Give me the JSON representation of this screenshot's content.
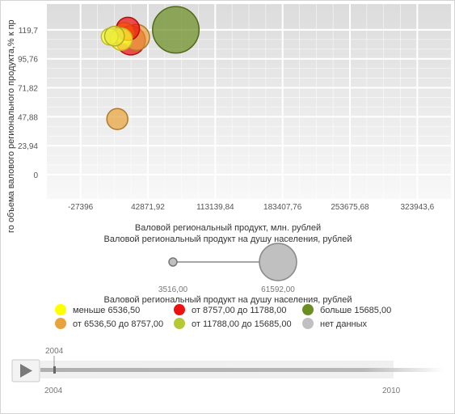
{
  "chart_data": {
    "type": "scatter",
    "variant": "bubble",
    "xlabel": "Валовой региональный продукт, млн. рублей",
    "ylabel": "го объема валового регионального продукта,% к пр",
    "size_label": "Валовой региональный продукт на душу населения, рублей",
    "x_ticks": [
      "-27396",
      "42871,92",
      "113139,84",
      "183407,76",
      "253675,68",
      "323943,6"
    ],
    "x_tick_values": [
      -27396,
      42871.92,
      113139.84,
      183407.76,
      253675.68,
      323943.6
    ],
    "y_ticks": [
      "0",
      "23,94",
      "47,88",
      "71,82",
      "95,76",
      "119,7"
    ],
    "y_tick_values": [
      0,
      23.94,
      47.88,
      71.82,
      95.76,
      119.7
    ],
    "xlim": [
      -62530,
      359078
    ],
    "ylim": [
      -20,
      141
    ],
    "grid": true,
    "points": [
      {
        "x": 72000,
        "y": 119.7,
        "size": 52000,
        "color": "#6b8e23"
      },
      {
        "x": 25000,
        "y": 111.0,
        "size": 18000,
        "color": "#ee1111"
      },
      {
        "x": 31000,
        "y": 113.5,
        "size": 14000,
        "color": "#e8a33c"
      },
      {
        "x": 18000,
        "y": 117.0,
        "size": 9000,
        "color": "#ffff00"
      },
      {
        "x": 22000,
        "y": 120.5,
        "size": 11000,
        "color": "#ee1111"
      },
      {
        "x": 15000,
        "y": 112.0,
        "size": 10000,
        "color": "#ffff33"
      },
      {
        "x": 3000,
        "y": 114.0,
        "size": 6000,
        "color": "#ffff33"
      },
      {
        "x": 8000,
        "y": 114.5,
        "size": 8000,
        "color": "#e8e83a"
      },
      {
        "x": 11000,
        "y": 46.0,
        "size": 9000,
        "color": "#e8a33c"
      }
    ],
    "size_range": {
      "min_label": "3516,00",
      "max_label": "61592,00",
      "min": 3516,
      "max": 61592
    },
    "legend": {
      "title": "Валовой региональный продукт на душу населения, рублей",
      "placement": "bottom",
      "items": [
        {
          "label": "меньше 6536,50",
          "color": "#ffff00"
        },
        {
          "label": "от 6536,50 до 8757,00",
          "color": "#e8a33c"
        },
        {
          "label": "от 8757,00 до 11788,00",
          "color": "#ee1111"
        },
        {
          "label": "от 11788,00 до 15685,00",
          "color": "#b5c934"
        },
        {
          "label": "больше 15685,00",
          "color": "#6b8e23"
        },
        {
          "label": "нет данных",
          "color": "#c0c0c0"
        }
      ]
    }
  },
  "timeline": {
    "current": "2004",
    "start": "2004",
    "end": "2010",
    "progress": 0.0
  }
}
